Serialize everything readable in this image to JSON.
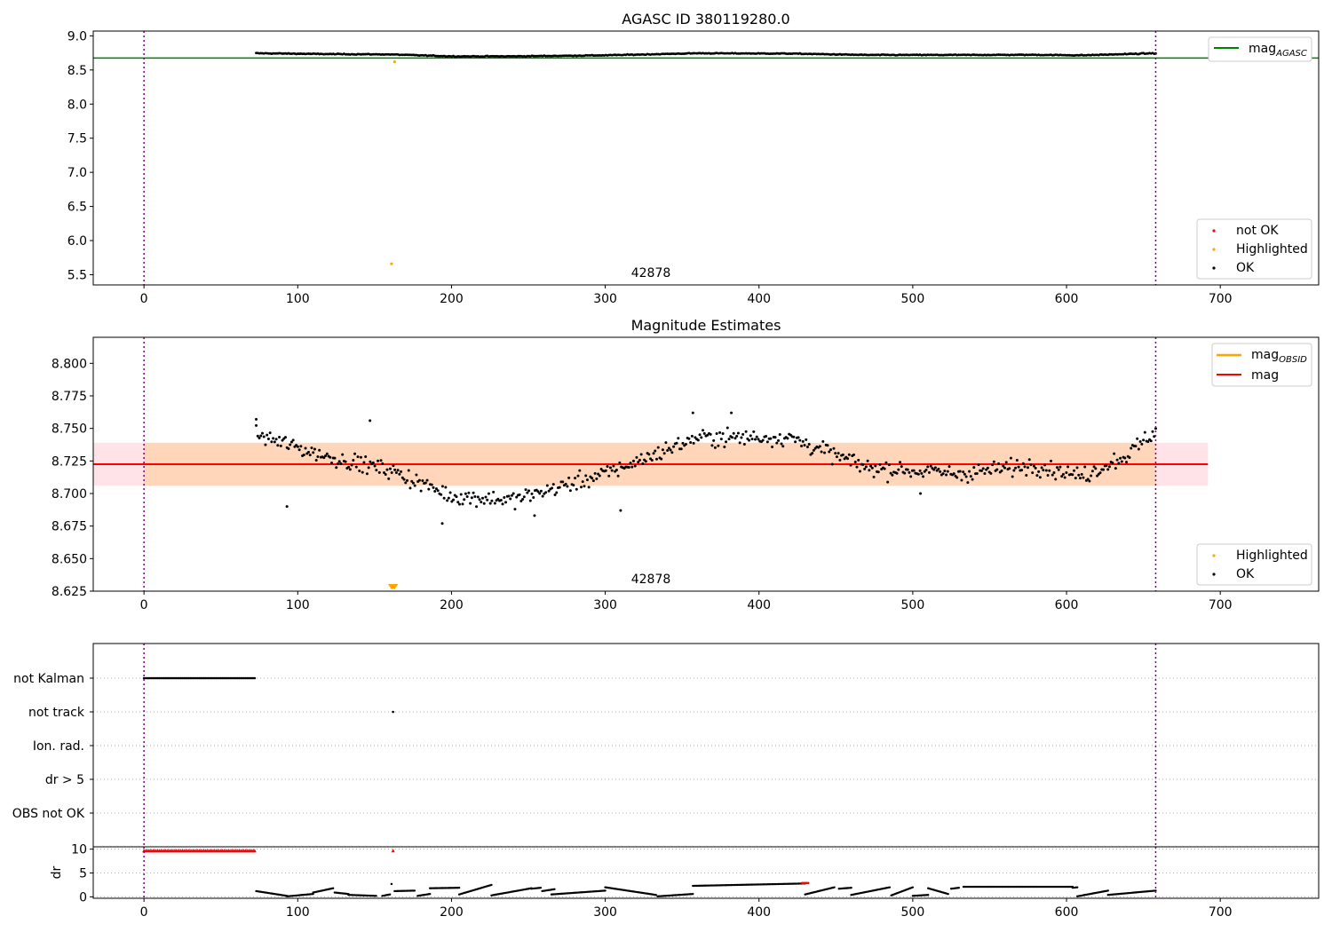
{
  "chart_data": [
    {
      "type": "scatter",
      "title": "AGASC ID 380119280.0",
      "xlim": [
        -33,
        764
      ],
      "ylim": [
        5.35,
        9.07
      ],
      "xticks": [
        0,
        100,
        200,
        300,
        400,
        500,
        600,
        700
      ],
      "yticks": [
        5.5,
        6.0,
        6.5,
        7.0,
        7.5,
        8.0,
        8.5,
        9.0
      ],
      "ytick_format": 1,
      "vlines": [
        0,
        658
      ],
      "annotation": {
        "text": "42878",
        "x": 328,
        "y": 5.42
      },
      "hline": {
        "name": "mag_AGASC",
        "y": 8.675,
        "x": [
          -33,
          764
        ],
        "color": "#008000"
      },
      "ok_points": {
        "x_range": [
          73,
          658
        ],
        "count": 585,
        "baseline": 8.728,
        "shape_points": [
          [
            73,
            8.745
          ],
          [
            120,
            8.733
          ],
          [
            160,
            8.728
          ],
          [
            200,
            8.7
          ],
          [
            240,
            8.7
          ],
          [
            300,
            8.715
          ],
          [
            360,
            8.745
          ],
          [
            420,
            8.74
          ],
          [
            470,
            8.72
          ],
          [
            530,
            8.72
          ],
          [
            580,
            8.722
          ],
          [
            610,
            8.715
          ],
          [
            658,
            8.745
          ]
        ],
        "color": "#000000"
      },
      "highlighted_points": [
        [
          163,
          8.62
        ],
        [
          161,
          5.66
        ]
      ],
      "legend_top": [
        {
          "label": "mag",
          "sub": "AGASC",
          "color": "#008000"
        }
      ],
      "legend_bottom": [
        {
          "label": "not OK",
          "color": "#ff0000"
        },
        {
          "label": "Highlighted",
          "color": "#ffa500"
        },
        {
          "label": "OK",
          "color": "#000000"
        }
      ]
    },
    {
      "type": "scatter",
      "title": "Magnitude Estimates",
      "xlim": [
        -33,
        764
      ],
      "ylim": [
        8.625,
        8.82
      ],
      "xticks": [
        0,
        100,
        200,
        300,
        400,
        500,
        600,
        700
      ],
      "yticks": [
        8.625,
        8.65,
        8.675,
        8.7,
        8.725,
        8.75,
        8.775,
        8.8
      ],
      "ytick_format": 3,
      "vlines": [
        0,
        658
      ],
      "annotation": {
        "text": "42878",
        "x": 328,
        "y": 8.631
      },
      "mag_line": {
        "name": "mag",
        "y": 8.7225,
        "x": [
          -33,
          692
        ],
        "color": "#ff0000"
      },
      "mag_band": {
        "y": [
          8.706,
          8.739
        ],
        "x": [
          -33,
          692
        ],
        "color": "#ffc0cb"
      },
      "obsid_band": {
        "name": "mag_OBSID",
        "y": [
          8.706,
          8.739
        ],
        "x": [
          0,
          658
        ],
        "color": "#ffa500"
      },
      "ok_points": {
        "x_range": [
          73,
          658
        ],
        "count": 585,
        "shape_points": [
          [
            73,
            8.745
          ],
          [
            120,
            8.728
          ],
          [
            160,
            8.718
          ],
          [
            200,
            8.698
          ],
          [
            240,
            8.695
          ],
          [
            300,
            8.715
          ],
          [
            360,
            8.743
          ],
          [
            420,
            8.743
          ],
          [
            470,
            8.72
          ],
          [
            530,
            8.715
          ],
          [
            580,
            8.722
          ],
          [
            610,
            8.713
          ],
          [
            640,
            8.73
          ],
          [
            658,
            8.748
          ]
        ],
        "outliers": [
          [
            73,
            8.757
          ],
          [
            93,
            8.69
          ],
          [
            147,
            8.756
          ],
          [
            194,
            8.677
          ],
          [
            254,
            8.683
          ],
          [
            310,
            8.687
          ],
          [
            357,
            8.762
          ],
          [
            382,
            8.762
          ],
          [
            505,
            8.7
          ]
        ],
        "color": "#000000"
      },
      "highlighted_markers": [
        161,
        162,
        163
      ],
      "legend_top": [
        {
          "label": "mag",
          "sub": "OBSID",
          "color": "#ffa500"
        },
        {
          "label": "mag",
          "sub": "",
          "color": "#ff0000"
        }
      ],
      "legend_bottom": [
        {
          "label": "Highlighted",
          "color": "#ffa500"
        },
        {
          "label": "OK",
          "color": "#000000"
        }
      ]
    },
    {
      "type": "scatter",
      "xlim": [
        -33,
        764
      ],
      "categories": [
        "not Kalman",
        "not track",
        "Ion. rad.",
        "dr > 5",
        "OBS not OK"
      ],
      "vlines": [
        0,
        658
      ],
      "flag_runs": [
        {
          "category": "not Kalman",
          "x_from": 0,
          "x_to": 72,
          "color": "#000000"
        }
      ],
      "flag_points": [
        {
          "category": "not track",
          "x": 162,
          "color": "#000000"
        }
      ]
    },
    {
      "type": "scatter",
      "xlim": [
        -33,
        764
      ],
      "ylim": [
        -0.3,
        10.5
      ],
      "ylabel": "dr",
      "xticks": [
        0,
        100,
        200,
        300,
        400,
        500,
        600,
        700
      ],
      "yticks": [
        0,
        5,
        10
      ],
      "vlines": [
        0,
        658
      ],
      "capped_points": {
        "x_from": 0,
        "x_to": 72,
        "y": 9.7,
        "color": "#ff0000"
      },
      "capped_extra": [
        162
      ],
      "dr_segments": [
        [
          73,
          93,
          1.2,
          0.2
        ],
        [
          93,
          110,
          0.1,
          0.6
        ],
        [
          110,
          123,
          0.9,
          1.8
        ],
        [
          124,
          133,
          0.9,
          0.6
        ],
        [
          133,
          151,
          0.4,
          0.2
        ],
        [
          155,
          160,
          0.2,
          0.5
        ],
        [
          161,
          161,
          2.7,
          2.7
        ],
        [
          163,
          176,
          1.2,
          1.3
        ],
        [
          178,
          186,
          0.2,
          0.6
        ],
        [
          186,
          205,
          1.8,
          1.9
        ],
        [
          205,
          226,
          0.5,
          2.5
        ],
        [
          226,
          252,
          0.3,
          1.8
        ],
        [
          252,
          258,
          1.7,
          1.9
        ],
        [
          259,
          267,
          1.2,
          1.6
        ],
        [
          265,
          300,
          0.5,
          1.3
        ],
        [
          300,
          333,
          2.0,
          0.4
        ],
        [
          334,
          357,
          0.1,
          0.6
        ],
        [
          357,
          430,
          2.3,
          2.8
        ],
        [
          430,
          449,
          0.5,
          2.0
        ],
        [
          452,
          460,
          1.7,
          1.9
        ],
        [
          460,
          485,
          0.4,
          2.0
        ],
        [
          486,
          500,
          0.3,
          2.0
        ],
        [
          500,
          510,
          0.2,
          0.4
        ],
        [
          510,
          523,
          1.8,
          0.6
        ],
        [
          525,
          530,
          1.7,
          1.9
        ],
        [
          533,
          604,
          2.1,
          2.1
        ],
        [
          604,
          607,
          1.9,
          2.0
        ],
        [
          607,
          627,
          0.1,
          1.3
        ],
        [
          627,
          658,
          0.4,
          1.3
        ]
      ],
      "dr_red": [
        [
          428,
          432,
          2.9
        ]
      ]
    }
  ]
}
